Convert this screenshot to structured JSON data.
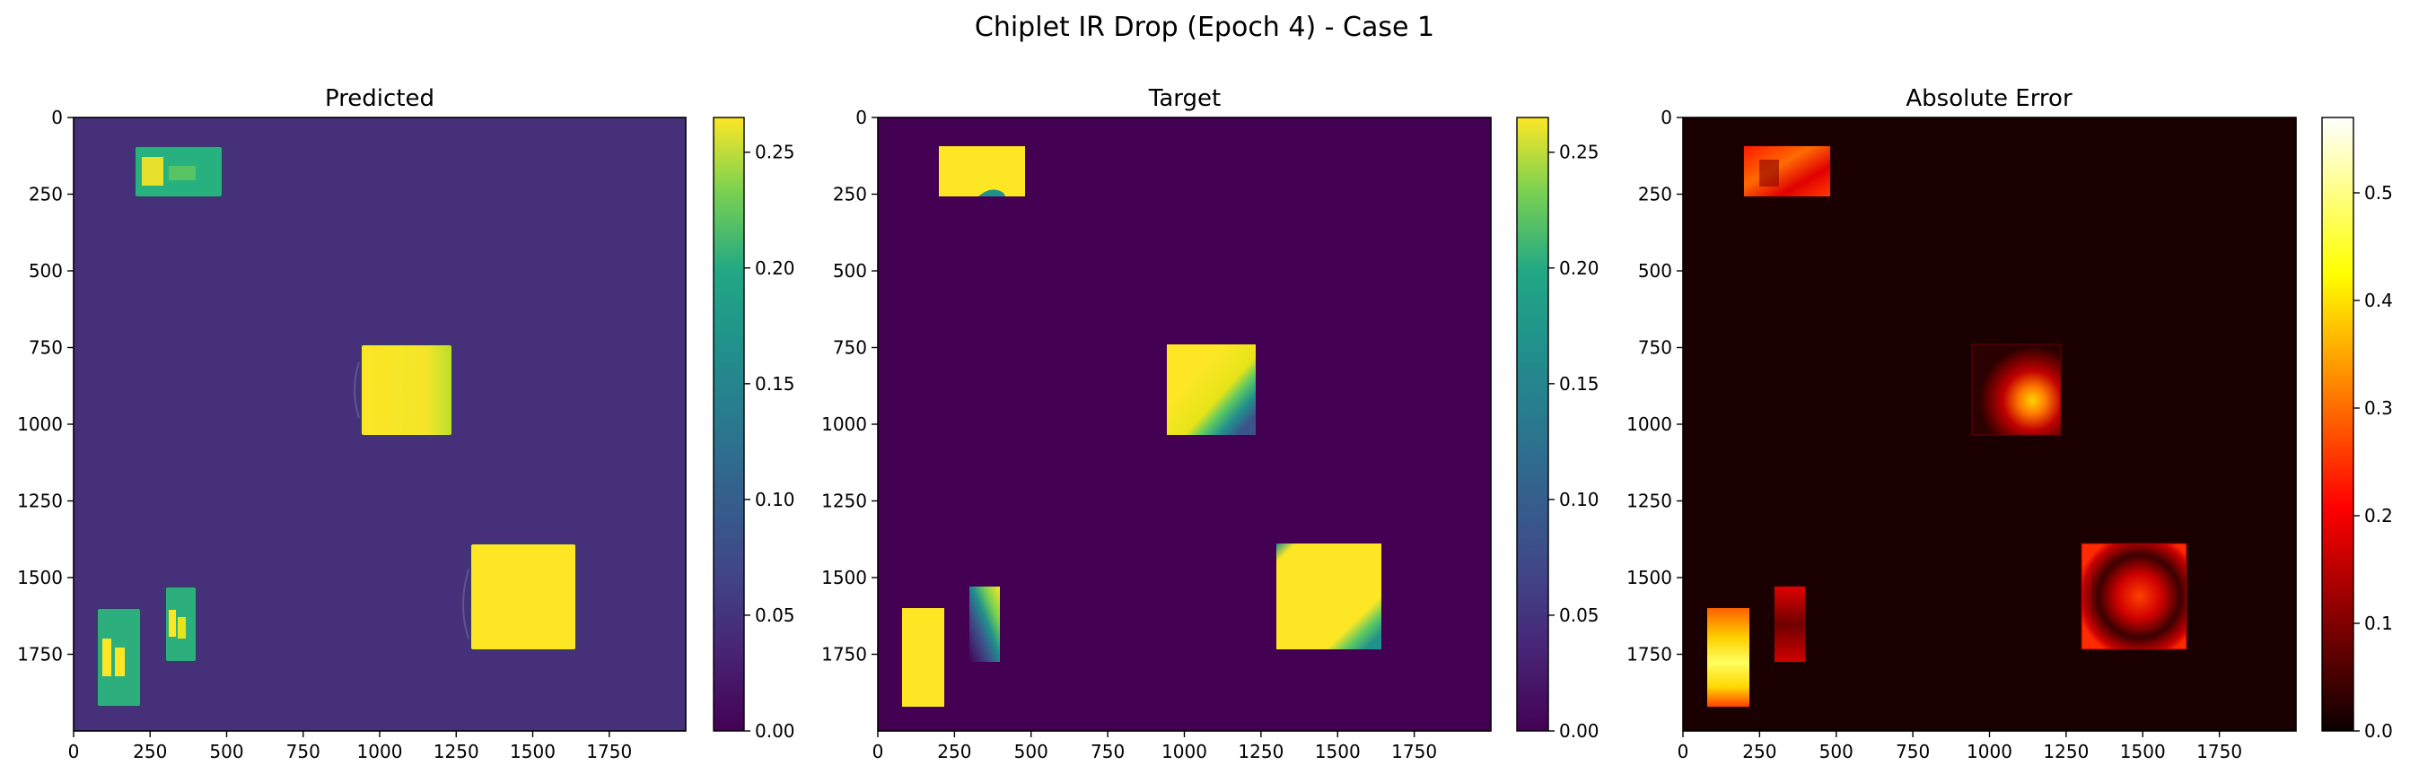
{
  "figure": {
    "suptitle": "Chiplet IR Drop (Epoch 4) - Case 1"
  },
  "chart_data": [
    {
      "type": "heatmap",
      "title": "Predicted",
      "colormap": "viridis",
      "xlim": [
        0,
        2000
      ],
      "ylim": [
        2000,
        0
      ],
      "xticks": [
        0,
        250,
        500,
        750,
        1000,
        1250,
        1500,
        1750
      ],
      "yticks": [
        0,
        250,
        500,
        750,
        1000,
        1250,
        1500,
        1750
      ],
      "background_value": 0.026,
      "clim": [
        0,
        0.265
      ],
      "colorbar_ticks": [
        "0.00",
        "0.05",
        "0.10",
        "0.15",
        "0.20",
        "0.25"
      ],
      "regions": [
        {
          "x0": 200,
          "x1": 490,
          "y0": 95,
          "y1": 260,
          "value": 0.19
        },
        {
          "x0": 940,
          "x1": 1235,
          "y0": 745,
          "y1": 1045,
          "value": 0.26
        },
        {
          "x0": 1300,
          "x1": 1645,
          "y0": 1390,
          "y1": 1740,
          "value": 0.26
        },
        {
          "x0": 75,
          "x1": 225,
          "y0": 1600,
          "y1": 1925,
          "value": 0.18
        },
        {
          "x0": 300,
          "x1": 400,
          "y0": 1530,
          "y1": 1780,
          "value": 0.18
        }
      ]
    },
    {
      "type": "heatmap",
      "title": "Target",
      "colormap": "viridis",
      "xlim": [
        0,
        2000
      ],
      "ylim": [
        2000,
        0
      ],
      "xticks": [
        0,
        250,
        500,
        750,
        1000,
        1250,
        1500,
        1750
      ],
      "yticks": [
        0,
        250,
        500,
        750,
        1000,
        1250,
        1500,
        1750
      ],
      "background_value": 0.0,
      "clim": [
        0,
        0.265
      ],
      "colorbar_ticks": [
        "0.00",
        "0.05",
        "0.10",
        "0.15",
        "0.20",
        "0.25"
      ],
      "regions": [
        {
          "x0": 200,
          "x1": 480,
          "y0": 95,
          "y1": 260,
          "value": 0.26
        },
        {
          "x0": 945,
          "x1": 1235,
          "y0": 745,
          "y1": 1040,
          "value": 0.26
        },
        {
          "x0": 1300,
          "x1": 1645,
          "y0": 1390,
          "y1": 1740,
          "value": 0.26
        },
        {
          "x0": 75,
          "x1": 215,
          "y0": 1600,
          "y1": 1925,
          "value": 0.26
        },
        {
          "x0": 300,
          "x1": 400,
          "y0": 1530,
          "y1": 1780,
          "value": 0.26
        }
      ]
    },
    {
      "type": "heatmap",
      "title": "Absolute Error",
      "colormap": "hot",
      "xlim": [
        0,
        2000
      ],
      "ylim": [
        2000,
        0
      ],
      "xticks": [
        0,
        250,
        500,
        750,
        1000,
        1250,
        1500,
        1750
      ],
      "yticks": [
        0,
        250,
        500,
        750,
        1000,
        1250,
        1500,
        1750
      ],
      "background_value": 0.026,
      "clim": [
        0,
        0.57
      ],
      "colorbar_ticks": [
        "0.0",
        "0.1",
        "0.2",
        "0.3",
        "0.4",
        "0.5"
      ],
      "regions": [
        {
          "x0": 200,
          "x1": 480,
          "y0": 95,
          "y1": 260,
          "value": 0.25
        },
        {
          "x0": 945,
          "x1": 1235,
          "y0": 745,
          "y1": 1040,
          "value": 0.3
        },
        {
          "x0": 1300,
          "x1": 1645,
          "y0": 1390,
          "y1": 1740,
          "value": 0.15
        },
        {
          "x0": 75,
          "x1": 215,
          "y0": 1600,
          "y1": 1925,
          "value": 0.45
        },
        {
          "x0": 300,
          "x1": 400,
          "y0": 1530,
          "y1": 1780,
          "value": 0.2
        }
      ]
    }
  ]
}
